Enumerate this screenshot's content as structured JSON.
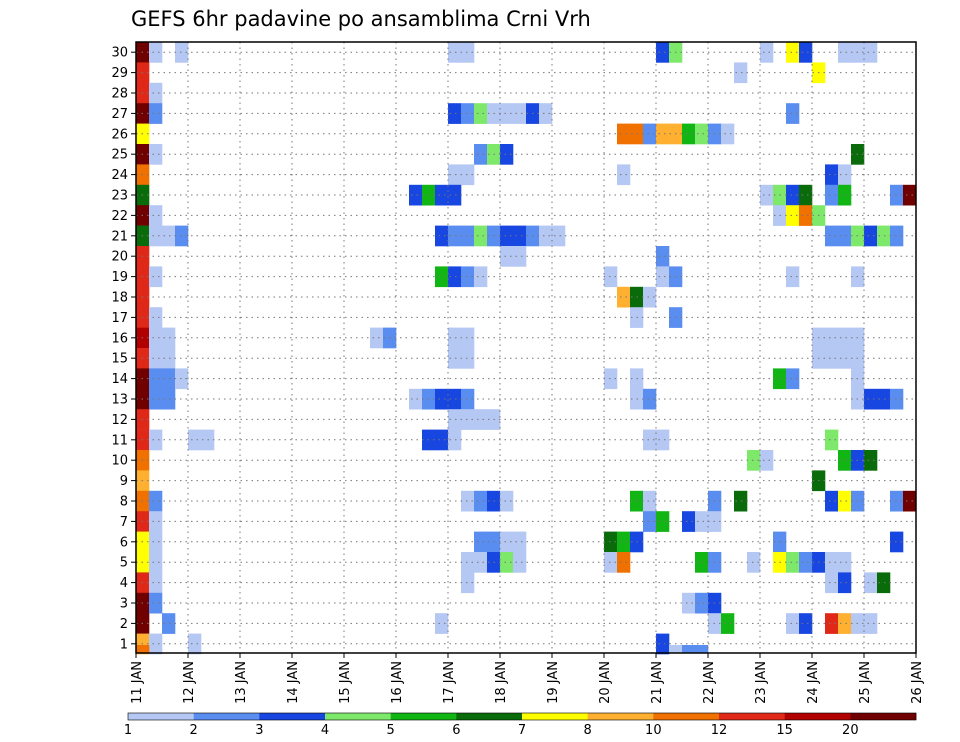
{
  "chart_data": {
    "type": "heatmap",
    "title": "GEFS 6hr padavine po ansamblima Crni Vrh",
    "xlabel": "",
    "ylabel": "",
    "y_ticks": [
      "1",
      "2",
      "3",
      "4",
      "5",
      "6",
      "7",
      "8",
      "9",
      "10",
      "11",
      "12",
      "13",
      "14",
      "15",
      "16",
      "17",
      "18",
      "19",
      "20",
      "21",
      "22",
      "23",
      "24",
      "25",
      "26",
      "27",
      "28",
      "29",
      "30"
    ],
    "x_ticks": [
      "11 JAN",
      "12 JAN",
      "13 JAN",
      "14 JAN",
      "15 JAN",
      "16 JAN",
      "17 JAN",
      "18 JAN",
      "19 JAN",
      "20 JAN",
      "21 JAN",
      "22 JAN",
      "23 JAN",
      "24 JAN",
      "25 JAN",
      "26 JAN"
    ],
    "time_steps_per_day": 4,
    "n_steps": 60,
    "members": 30,
    "grid": true,
    "legend_placement": "bottom",
    "colorbar": {
      "labels": [
        "1",
        "2",
        "3",
        "4",
        "5",
        "6",
        "7",
        "8",
        "10",
        "12",
        "15",
        "20"
      ],
      "colors": [
        "#b5c7f3",
        "#5a8df0",
        "#1846e0",
        "#7ee86a",
        "#11b514",
        "#0a6b0a",
        "#ffff00",
        "#ffb030",
        "#f07000",
        "#e02818",
        "#b00000",
        "#700000"
      ]
    },
    "cells": [
      {
        "m": 30,
        "t": [
          [
            0,
            12
          ],
          [
            1,
            1
          ],
          [
            3,
            1
          ],
          [
            24,
            1
          ],
          [
            25,
            1
          ],
          [
            40,
            3
          ],
          [
            41,
            4
          ],
          [
            48,
            1
          ],
          [
            50,
            7
          ],
          [
            51,
            3
          ],
          [
            54,
            1
          ],
          [
            55,
            1
          ],
          [
            56,
            1
          ]
        ]
      },
      {
        "m": 29,
        "t": [
          [
            0,
            10
          ],
          [
            46,
            1
          ],
          [
            52,
            7
          ]
        ]
      },
      {
        "m": 28,
        "t": [
          [
            0,
            10
          ],
          [
            1,
            1
          ]
        ]
      },
      {
        "m": 27,
        "t": [
          [
            0,
            12
          ],
          [
            1,
            2
          ],
          [
            24,
            3
          ],
          [
            25,
            2
          ],
          [
            26,
            4
          ],
          [
            27,
            1
          ],
          [
            28,
            1
          ],
          [
            29,
            1
          ],
          [
            30,
            3
          ],
          [
            31,
            1
          ],
          [
            50,
            2
          ]
        ]
      },
      {
        "m": 26,
        "t": [
          [
            0,
            7
          ],
          [
            37,
            9
          ],
          [
            38,
            9
          ],
          [
            39,
            2
          ],
          [
            40,
            8
          ],
          [
            41,
            8
          ],
          [
            42,
            5
          ],
          [
            43,
            4
          ],
          [
            44,
            2
          ],
          [
            45,
            1
          ]
        ]
      },
      {
        "m": 25,
        "t": [
          [
            0,
            12
          ],
          [
            1,
            1
          ],
          [
            26,
            2
          ],
          [
            27,
            4
          ],
          [
            28,
            3
          ],
          [
            55,
            6
          ]
        ]
      },
      {
        "m": 24,
        "t": [
          [
            0,
            9
          ],
          [
            24,
            1
          ],
          [
            25,
            1
          ],
          [
            37,
            1
          ],
          [
            53,
            3
          ],
          [
            54,
            1
          ]
        ]
      },
      {
        "m": 23,
        "t": [
          [
            0,
            6
          ],
          [
            21,
            3
          ],
          [
            22,
            5
          ],
          [
            23,
            3
          ],
          [
            24,
            3
          ],
          [
            48,
            1
          ],
          [
            49,
            4
          ],
          [
            50,
            3
          ],
          [
            51,
            6
          ],
          [
            53,
            2
          ],
          [
            54,
            5
          ],
          [
            58,
            2
          ],
          [
            59,
            12
          ]
        ]
      },
      {
        "m": 22,
        "t": [
          [
            0,
            12
          ],
          [
            1,
            1
          ],
          [
            49,
            1
          ],
          [
            50,
            7
          ],
          [
            51,
            9
          ],
          [
            52,
            4
          ]
        ]
      },
      {
        "m": 21,
        "t": [
          [
            0,
            6
          ],
          [
            1,
            1
          ],
          [
            2,
            1
          ],
          [
            3,
            2
          ],
          [
            23,
            3
          ],
          [
            24,
            2
          ],
          [
            25,
            2
          ],
          [
            26,
            4
          ],
          [
            27,
            2
          ],
          [
            28,
            3
          ],
          [
            29,
            3
          ],
          [
            30,
            2
          ],
          [
            31,
            1
          ],
          [
            32,
            1
          ],
          [
            53,
            2
          ],
          [
            54,
            2
          ],
          [
            55,
            4
          ],
          [
            56,
            3
          ],
          [
            57,
            4
          ],
          [
            58,
            2
          ]
        ]
      },
      {
        "m": 20,
        "t": [
          [
            0,
            10
          ],
          [
            28,
            1
          ],
          [
            29,
            1
          ],
          [
            40,
            2
          ]
        ]
      },
      {
        "m": 19,
        "t": [
          [
            0,
            10
          ],
          [
            1,
            1
          ],
          [
            23,
            5
          ],
          [
            24,
            3
          ],
          [
            25,
            2
          ],
          [
            26,
            1
          ],
          [
            36,
            1
          ],
          [
            40,
            1
          ],
          [
            41,
            2
          ],
          [
            50,
            1
          ],
          [
            55,
            1
          ]
        ]
      },
      {
        "m": 18,
        "t": [
          [
            0,
            10
          ],
          [
            37,
            8
          ],
          [
            38,
            6
          ],
          [
            39,
            1
          ]
        ]
      },
      {
        "m": 17,
        "t": [
          [
            0,
            10
          ],
          [
            1,
            1
          ],
          [
            38,
            1
          ],
          [
            41,
            2
          ]
        ]
      },
      {
        "m": 16,
        "t": [
          [
            0,
            11
          ],
          [
            1,
            1
          ],
          [
            2,
            1
          ],
          [
            18,
            1
          ],
          [
            19,
            2
          ],
          [
            24,
            1
          ],
          [
            25,
            1
          ],
          [
            52,
            1
          ],
          [
            53,
            1
          ],
          [
            54,
            1
          ],
          [
            55,
            1
          ]
        ]
      },
      {
        "m": 15,
        "t": [
          [
            0,
            10
          ],
          [
            1,
            1
          ],
          [
            2,
            1
          ],
          [
            24,
            1
          ],
          [
            25,
            1
          ],
          [
            52,
            1
          ],
          [
            53,
            1
          ],
          [
            54,
            1
          ],
          [
            55,
            1
          ]
        ]
      },
      {
        "m": 14,
        "t": [
          [
            0,
            12
          ],
          [
            1,
            2
          ],
          [
            2,
            2
          ],
          [
            3,
            1
          ],
          [
            36,
            1
          ],
          [
            38,
            1
          ],
          [
            49,
            5
          ],
          [
            50,
            2
          ],
          [
            55,
            1
          ]
        ]
      },
      {
        "m": 13,
        "t": [
          [
            0,
            12
          ],
          [
            1,
            2
          ],
          [
            2,
            2
          ],
          [
            21,
            1
          ],
          [
            22,
            2
          ],
          [
            23,
            3
          ],
          [
            24,
            3
          ],
          [
            25,
            2
          ],
          [
            38,
            1
          ],
          [
            39,
            2
          ],
          [
            55,
            1
          ],
          [
            56,
            3
          ],
          [
            57,
            3
          ],
          [
            58,
            2
          ]
        ]
      },
      {
        "m": 12,
        "t": [
          [
            0,
            10
          ],
          [
            24,
            1
          ],
          [
            25,
            1
          ],
          [
            26,
            1
          ],
          [
            27,
            1
          ]
        ]
      },
      {
        "m": 11,
        "t": [
          [
            0,
            10
          ],
          [
            1,
            1
          ],
          [
            4,
            1
          ],
          [
            5,
            1
          ],
          [
            22,
            3
          ],
          [
            23,
            3
          ],
          [
            24,
            1
          ],
          [
            39,
            1
          ],
          [
            40,
            1
          ],
          [
            53,
            4
          ]
        ]
      },
      {
        "m": 10,
        "t": [
          [
            0,
            9
          ],
          [
            47,
            4
          ],
          [
            48,
            1
          ],
          [
            54,
            5
          ],
          [
            55,
            3
          ],
          [
            56,
            6
          ]
        ]
      },
      {
        "m": 9,
        "t": [
          [
            0,
            8
          ],
          [
            52,
            6
          ]
        ]
      },
      {
        "m": 8,
        "t": [
          [
            0,
            9
          ],
          [
            1,
            2
          ],
          [
            25,
            1
          ],
          [
            26,
            2
          ],
          [
            27,
            3
          ],
          [
            28,
            1
          ],
          [
            38,
            5
          ],
          [
            39,
            1
          ],
          [
            44,
            2
          ],
          [
            46,
            6
          ],
          [
            53,
            3
          ],
          [
            54,
            7
          ],
          [
            55,
            2
          ],
          [
            58,
            2
          ],
          [
            59,
            12
          ]
        ]
      },
      {
        "m": 7,
        "t": [
          [
            0,
            10
          ],
          [
            1,
            1
          ],
          [
            39,
            2
          ],
          [
            40,
            5
          ],
          [
            42,
            3
          ],
          [
            43,
            1
          ],
          [
            44,
            1
          ]
        ]
      },
      {
        "m": 6,
        "t": [
          [
            0,
            7
          ],
          [
            1,
            1
          ],
          [
            26,
            2
          ],
          [
            27,
            2
          ],
          [
            28,
            1
          ],
          [
            29,
            1
          ],
          [
            36,
            6
          ],
          [
            37,
            5
          ],
          [
            38,
            3
          ],
          [
            49,
            2
          ],
          [
            58,
            3
          ]
        ]
      },
      {
        "m": 5,
        "t": [
          [
            0,
            7
          ],
          [
            1,
            1
          ],
          [
            25,
            1
          ],
          [
            26,
            1
          ],
          [
            27,
            3
          ],
          [
            28,
            4
          ],
          [
            29,
            1
          ],
          [
            36,
            1
          ],
          [
            37,
            9
          ],
          [
            43,
            5
          ],
          [
            44,
            2
          ],
          [
            47,
            1
          ],
          [
            49,
            7
          ],
          [
            50,
            4
          ],
          [
            51,
            2
          ],
          [
            52,
            3
          ],
          [
            53,
            1
          ],
          [
            54,
            1
          ]
        ]
      },
      {
        "m": 4,
        "t": [
          [
            0,
            10
          ],
          [
            1,
            1
          ],
          [
            25,
            1
          ],
          [
            53,
            1
          ],
          [
            54,
            3
          ],
          [
            56,
            1
          ],
          [
            57,
            6
          ]
        ]
      },
      {
        "m": 3,
        "t": [
          [
            0,
            12
          ],
          [
            1,
            2
          ],
          [
            42,
            1
          ],
          [
            43,
            2
          ],
          [
            44,
            3
          ]
        ]
      },
      {
        "m": 2,
        "t": [
          [
            0,
            12
          ],
          [
            2,
            2
          ],
          [
            23,
            1
          ],
          [
            44,
            1
          ],
          [
            45,
            5
          ],
          [
            50,
            1
          ],
          [
            51,
            3
          ],
          [
            53,
            10
          ],
          [
            54,
            8
          ],
          [
            55,
            1
          ],
          [
            56,
            1
          ]
        ]
      },
      {
        "m": 1,
        "t": [
          [
            0,
            8
          ],
          [
            1,
            1
          ],
          [
            4,
            1
          ],
          [
            40,
            3
          ]
        ]
      },
      {
        "m": 0,
        "t": [
          [
            0,
            9
          ],
          [
            41,
            1
          ],
          [
            42,
            2
          ],
          [
            43,
            2
          ]
        ]
      }
    ]
  }
}
